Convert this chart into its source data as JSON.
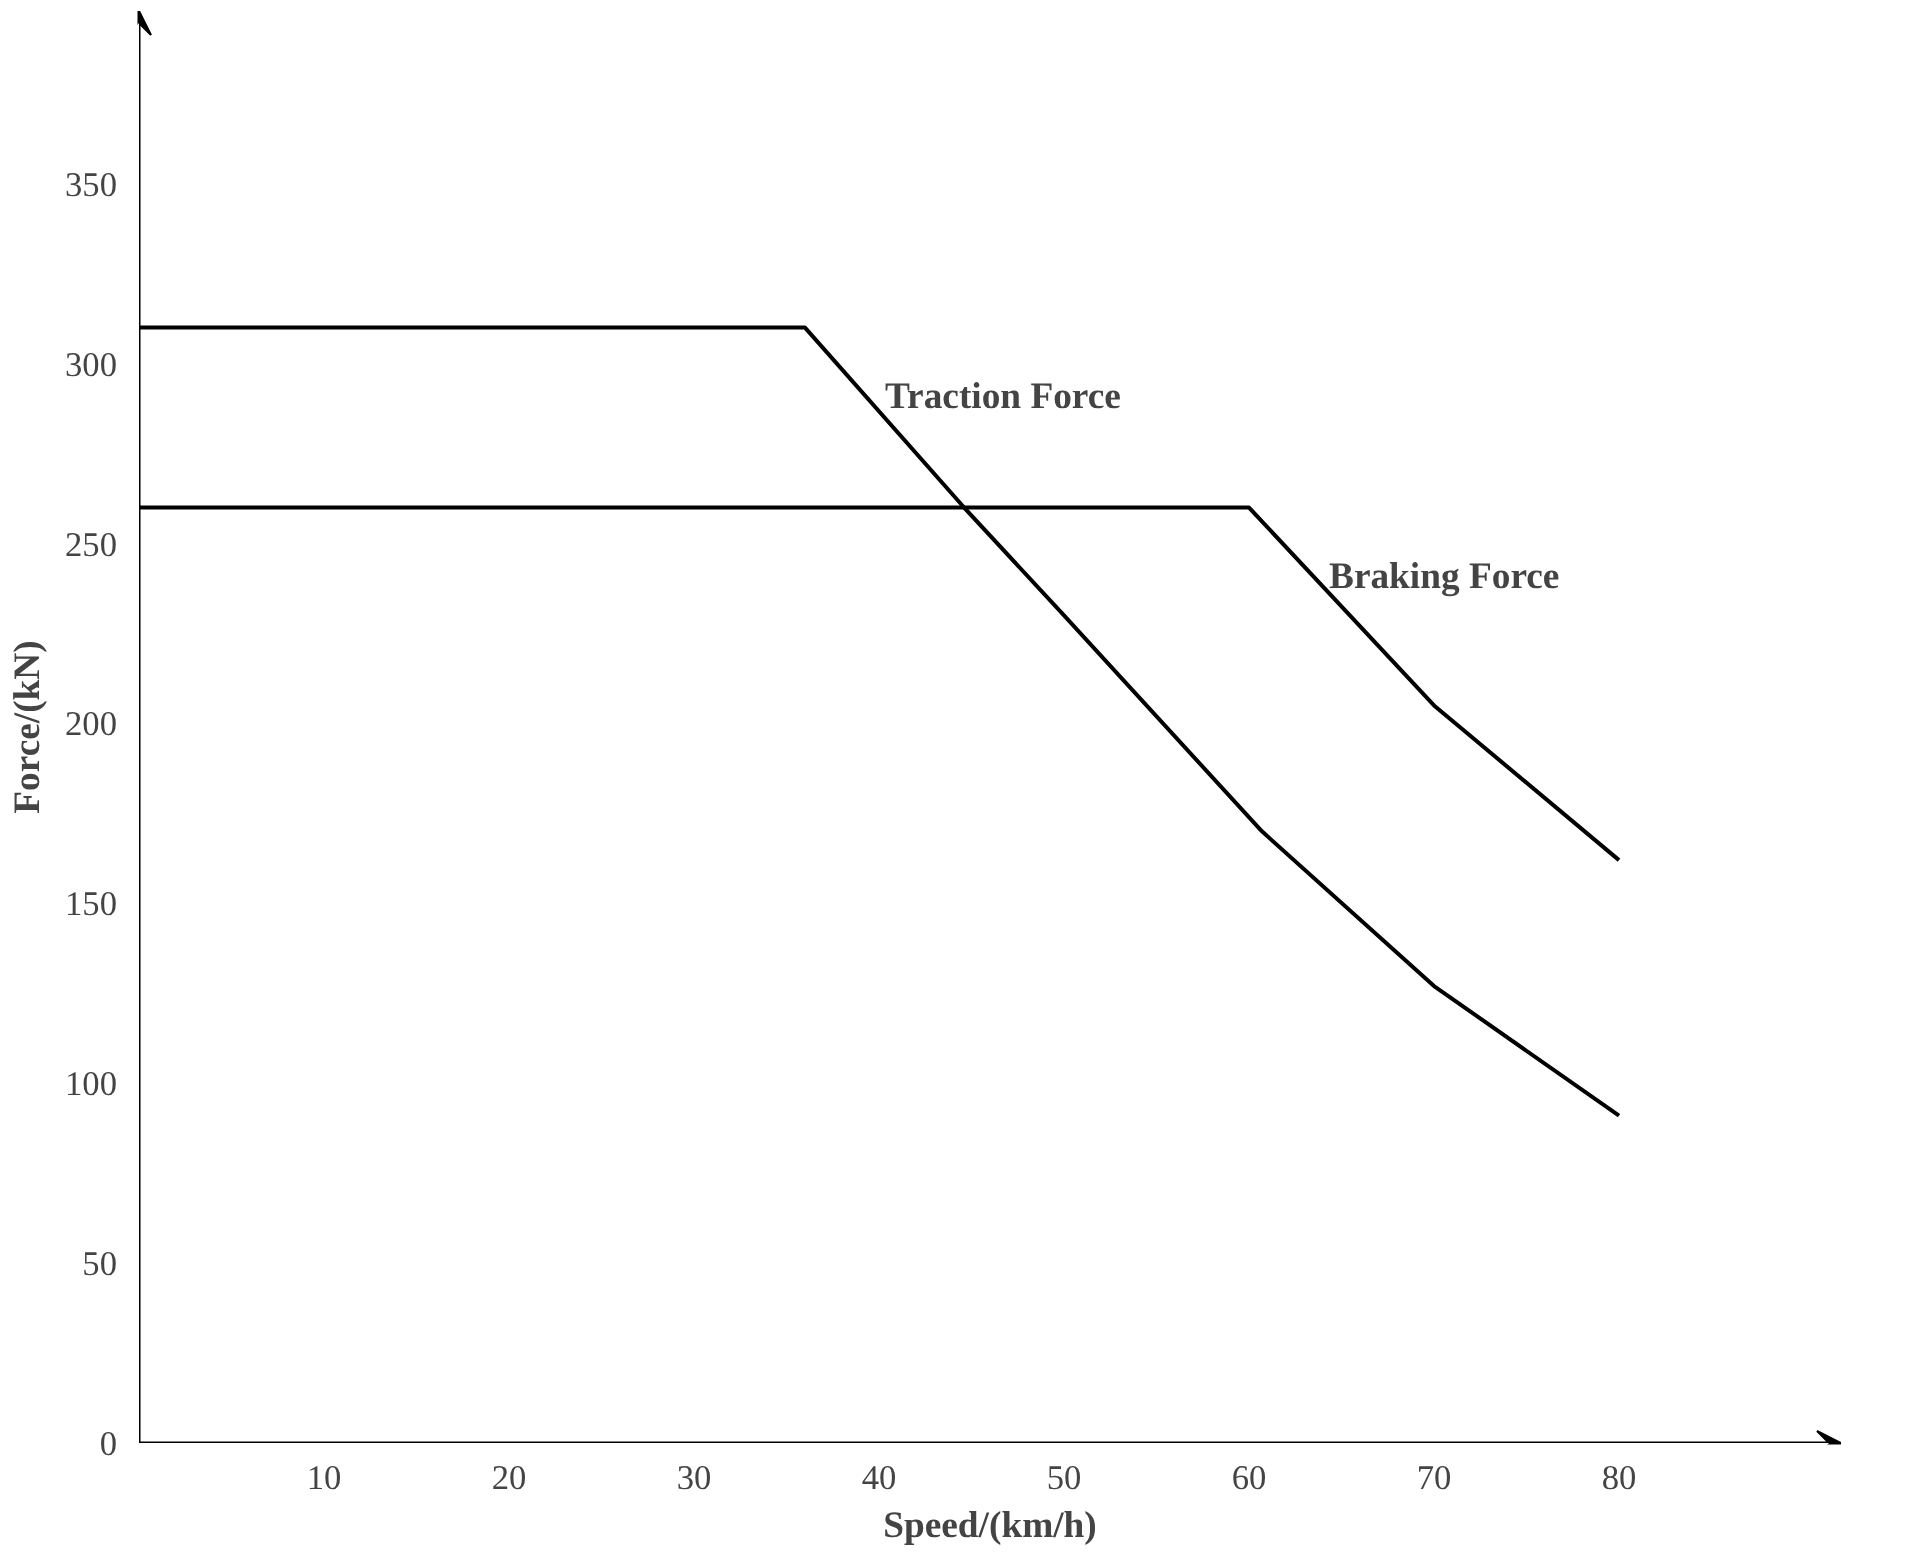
{
  "chart_data": {
    "type": "line",
    "xlabel": "Speed/(km/h)",
    "ylabel": "Force/(kN)",
    "series": [
      {
        "name": "Traction Force",
        "color": "#000000",
        "x": [
          0,
          36,
          44.6,
          50,
          60.7,
          70,
          80
        ],
        "values": [
          310,
          310,
          260,
          230,
          170,
          127,
          91
        ]
      },
      {
        "name": "Braking Force",
        "color": "#000000",
        "x": [
          0,
          60,
          70,
          80
        ],
        "values": [
          260,
          260,
          205,
          162
        ]
      }
    ],
    "xlim": [
      0,
      92
    ],
    "ylim": [
      0,
      398
    ],
    "xticks": [
      10,
      20,
      30,
      40,
      50,
      60,
      70,
      80
    ],
    "yticks": [
      0,
      50,
      100,
      150,
      200,
      250,
      300,
      350
    ],
    "grid": false,
    "legend": false,
    "marker": "none",
    "line_style": "solid"
  }
}
